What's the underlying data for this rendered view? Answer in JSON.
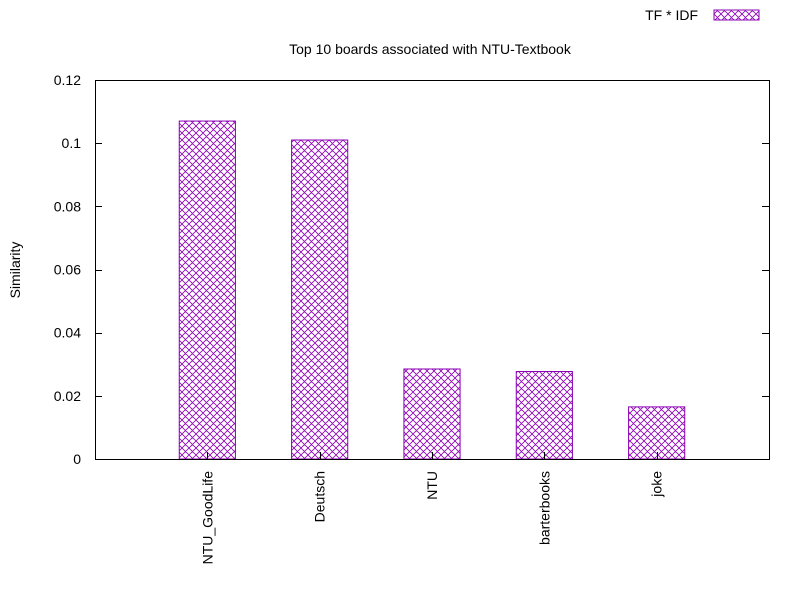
{
  "chart_data": {
    "type": "bar",
    "title": "Top 10 boards associated with NTU-Textbook",
    "xlabel": "",
    "ylabel": "Similarity",
    "categories": [
      "NTU_GoodLife",
      "Deutsch",
      "NTU",
      "barterbooks",
      "joke"
    ],
    "series": [
      {
        "name": "TF * IDF",
        "values": [
          0.107,
          0.101,
          0.0285,
          0.0277,
          0.0165
        ]
      }
    ],
    "ylim": [
      0,
      0.12
    ],
    "yticks": [
      0,
      0.02,
      0.04,
      0.06,
      0.08,
      0.1,
      0.12
    ],
    "ytick_labels": [
      "0",
      "0.02",
      "0.04",
      "0.06",
      "0.08",
      "0.1",
      "0.12"
    ],
    "grid": false,
    "legend_position": "top-right",
    "bar_color": "#8b00b5",
    "bar_pattern": "crosshatch"
  }
}
